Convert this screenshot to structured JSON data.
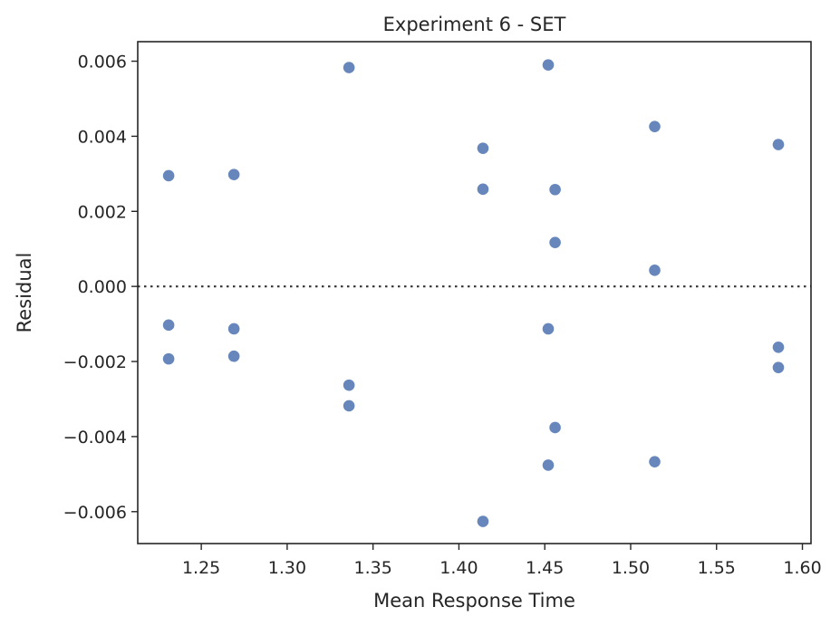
{
  "chart_data": {
    "type": "scatter",
    "title": "Experiment 6 - SET",
    "xlabel": "Mean Response Time",
    "ylabel": "Residual",
    "xlim": [
      1.213,
      1.605
    ],
    "ylim": [
      -0.00685,
      0.00652
    ],
    "x_ticks": [
      1.25,
      1.3,
      1.35,
      1.4,
      1.45,
      1.5,
      1.55,
      1.6
    ],
    "x_tick_labels": [
      "1.25",
      "1.30",
      "1.35",
      "1.40",
      "1.45",
      "1.50",
      "1.55",
      "1.60"
    ],
    "y_ticks": [
      -0.006,
      -0.004,
      -0.002,
      0.0,
      0.002,
      0.004,
      0.006
    ],
    "y_tick_labels": [
      "−0.006",
      "−0.004",
      "−0.002",
      "0.000",
      "0.002",
      "0.004",
      "0.006"
    ],
    "reference_line": {
      "y": 0.0,
      "style": "dotted"
    },
    "grid": false,
    "marker_color": "#4C72B0",
    "points": [
      {
        "x": 1.231,
        "y": 0.00295
      },
      {
        "x": 1.231,
        "y": -0.00103
      },
      {
        "x": 1.231,
        "y": -0.00193
      },
      {
        "x": 1.269,
        "y": 0.00298
      },
      {
        "x": 1.269,
        "y": -0.00113
      },
      {
        "x": 1.269,
        "y": -0.00186
      },
      {
        "x": 1.336,
        "y": 0.00583
      },
      {
        "x": 1.336,
        "y": -0.00263
      },
      {
        "x": 1.336,
        "y": -0.00318
      },
      {
        "x": 1.414,
        "y": 0.00368
      },
      {
        "x": 1.414,
        "y": 0.00259
      },
      {
        "x": 1.414,
        "y": -0.00626
      },
      {
        "x": 1.452,
        "y": 0.0059
      },
      {
        "x": 1.452,
        "y": -0.00113
      },
      {
        "x": 1.452,
        "y": -0.00476
      },
      {
        "x": 1.456,
        "y": 0.00258
      },
      {
        "x": 1.456,
        "y": 0.00117
      },
      {
        "x": 1.456,
        "y": -0.00376
      },
      {
        "x": 1.514,
        "y": 0.00426
      },
      {
        "x": 1.514,
        "y": 0.00043
      },
      {
        "x": 1.514,
        "y": -0.00467
      },
      {
        "x": 1.586,
        "y": 0.00378
      },
      {
        "x": 1.586,
        "y": -0.00162
      },
      {
        "x": 1.586,
        "y": -0.00216
      }
    ]
  }
}
